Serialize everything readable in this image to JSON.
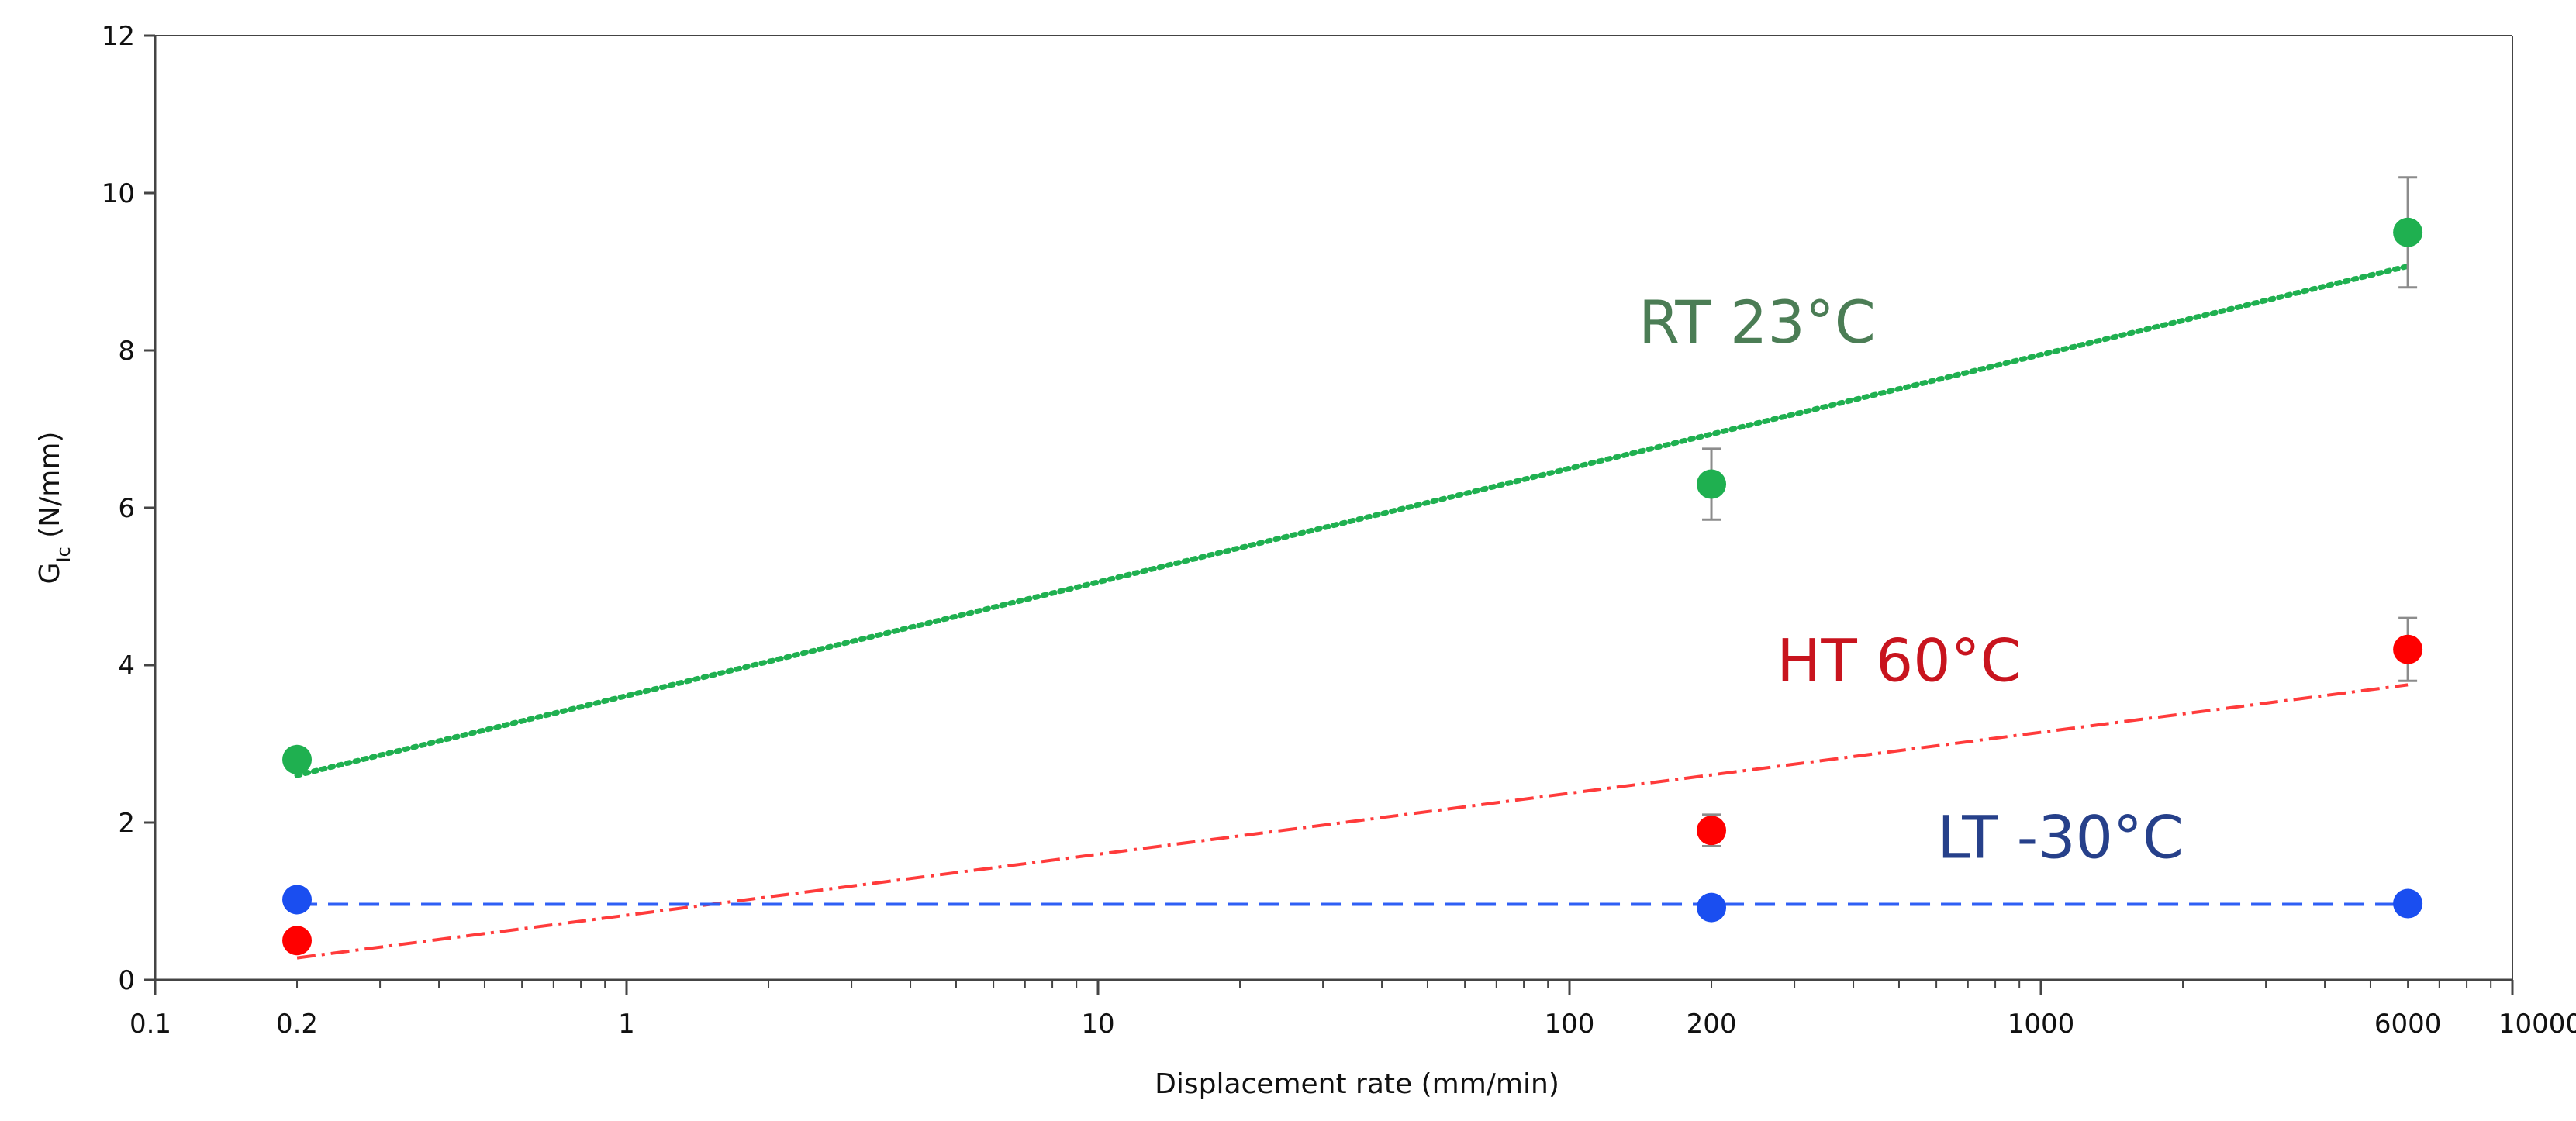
{
  "chart_data": {
    "type": "scatter",
    "title": "",
    "xlabel": "Displacement rate (mm/min)",
    "ylabel": "G",
    "ylabel_sub": "Ic",
    "ylabel_unit": " (N/mm)",
    "x_scale": "log",
    "xlim": [
      0.1,
      10000
    ],
    "ylim": [
      0,
      12
    ],
    "y_ticks": [
      "0",
      "2",
      "4",
      "6",
      "8",
      "10",
      "12"
    ],
    "x_ticks": [
      {
        "value": 0.1,
        "label": "0.1"
      },
      {
        "value": 0.2,
        "label": "0.2"
      },
      {
        "value": 1,
        "label": "1"
      },
      {
        "value": 10,
        "label": "10"
      },
      {
        "value": 100,
        "label": "100"
      },
      {
        "value": 200,
        "label": "200"
      },
      {
        "value": 1000,
        "label": "1000"
      },
      {
        "value": 6000,
        "label": "6000"
      },
      {
        "value": 10000,
        "label": "10000"
      }
    ],
    "grid": false,
    "series": [
      {
        "name": "RT 23°C",
        "color": "#1fb050",
        "label_color": "#4b7d55",
        "x": [
          0.2,
          200,
          6000
        ],
        "y": [
          2.8,
          6.3,
          9.5
        ],
        "err": [
          0.1,
          0.45,
          0.7
        ],
        "trend": {
          "style": "dotted",
          "color": "#1fb050",
          "x": [
            0.2,
            6000
          ],
          "y": [
            2.6,
            9.07
          ]
        },
        "label_pos": {
          "x": 250,
          "y": 8.1
        }
      },
      {
        "name": "HT 60°C",
        "color": "#ff0000",
        "label_color": "#c8141e",
        "x": [
          0.2,
          200,
          6000
        ],
        "y": [
          0.5,
          1.9,
          4.2
        ],
        "err": [
          0.1,
          0.2,
          0.4
        ],
        "trend": {
          "style": "dashdot",
          "color": "#ff3b3b",
          "x": [
            0.2,
            6000
          ],
          "y": [
            0.28,
            3.75
          ]
        },
        "label_pos": {
          "x": 500,
          "y": 3.8
        }
      },
      {
        "name": "LT -30°C",
        "color": "#1a4ef0",
        "label_color": "#26408a",
        "x": [
          0.2,
          200,
          6000
        ],
        "y": [
          1.02,
          0.92,
          0.97
        ],
        "err": [
          0.05,
          0.05,
          0.05
        ],
        "trend": {
          "style": "dashed",
          "color": "#2f5ff5",
          "x": [
            0.2,
            6000
          ],
          "y": [
            0.96,
            0.96
          ]
        },
        "label_pos": {
          "x": 1100,
          "y": 1.55
        }
      }
    ]
  }
}
